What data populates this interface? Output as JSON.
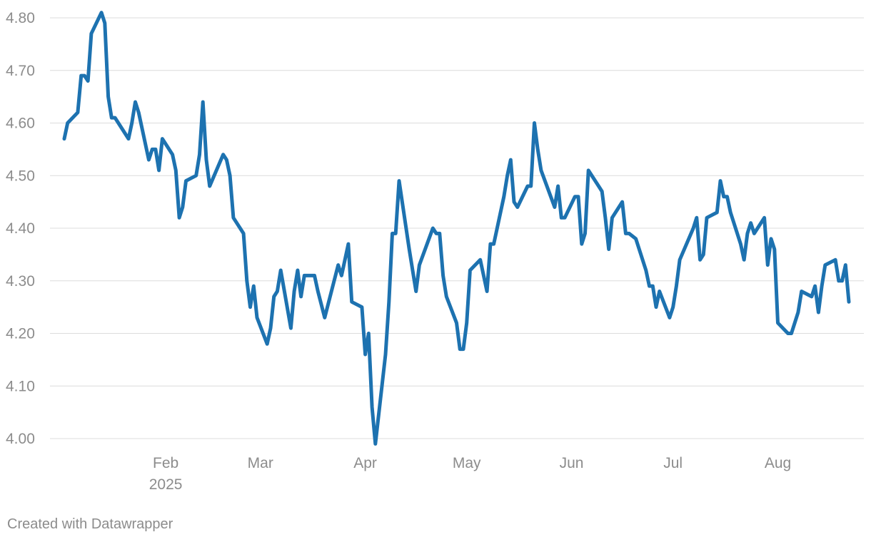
{
  "chart_data": {
    "type": "line",
    "title": "",
    "xlabel": "",
    "ylabel": "",
    "ylim": [
      4.0,
      4.8
    ],
    "y_ticks": [
      4.0,
      4.1,
      4.2,
      4.3,
      4.4,
      4.5,
      4.6,
      4.7,
      4.8
    ],
    "y_tick_labels": [
      "4.00",
      "4.10",
      "4.20",
      "4.30",
      "4.40",
      "4.50",
      "4.60",
      "4.70",
      "4.80"
    ],
    "x_ticks": [
      {
        "label": "Feb",
        "sublabel": "2025",
        "date": "2025-02-01"
      },
      {
        "label": "Mar",
        "date": "2025-03-01"
      },
      {
        "label": "Apr",
        "date": "2025-04-01"
      },
      {
        "label": "May",
        "date": "2025-05-01"
      },
      {
        "label": "Jun",
        "date": "2025-06-01"
      },
      {
        "label": "Jul",
        "date": "2025-07-01"
      },
      {
        "label": "Aug",
        "date": "2025-08-01"
      }
    ],
    "grid": true,
    "line_color": "#1d72b0",
    "series": [
      {
        "points": [
          [
            "2025-01-02",
            4.57
          ],
          [
            "2025-01-03",
            4.6
          ],
          [
            "2025-01-06",
            4.62
          ],
          [
            "2025-01-07",
            4.69
          ],
          [
            "2025-01-08",
            4.69
          ],
          [
            "2025-01-09",
            4.68
          ],
          [
            "2025-01-10",
            4.77
          ],
          [
            "2025-01-13",
            4.81
          ],
          [
            "2025-01-14",
            4.79
          ],
          [
            "2025-01-15",
            4.65
          ],
          [
            "2025-01-16",
            4.61
          ],
          [
            "2025-01-17",
            4.61
          ],
          [
            "2025-01-21",
            4.57
          ],
          [
            "2025-01-22",
            4.6
          ],
          [
            "2025-01-23",
            4.64
          ],
          [
            "2025-01-24",
            4.62
          ],
          [
            "2025-01-27",
            4.53
          ],
          [
            "2025-01-28",
            4.55
          ],
          [
            "2025-01-29",
            4.55
          ],
          [
            "2025-01-30",
            4.51
          ],
          [
            "2025-01-31",
            4.57
          ],
          [
            "2025-02-03",
            4.54
          ],
          [
            "2025-02-04",
            4.51
          ],
          [
            "2025-02-05",
            4.42
          ],
          [
            "2025-02-06",
            4.44
          ],
          [
            "2025-02-07",
            4.49
          ],
          [
            "2025-02-10",
            4.5
          ],
          [
            "2025-02-11",
            4.54
          ],
          [
            "2025-02-12",
            4.64
          ],
          [
            "2025-02-13",
            4.53
          ],
          [
            "2025-02-14",
            4.48
          ],
          [
            "2025-02-18",
            4.54
          ],
          [
            "2025-02-19",
            4.53
          ],
          [
            "2025-02-20",
            4.5
          ],
          [
            "2025-02-21",
            4.42
          ],
          [
            "2025-02-24",
            4.39
          ],
          [
            "2025-02-25",
            4.3
          ],
          [
            "2025-02-26",
            4.25
          ],
          [
            "2025-02-27",
            4.29
          ],
          [
            "2025-02-28",
            4.23
          ],
          [
            "2025-03-03",
            4.18
          ],
          [
            "2025-03-04",
            4.21
          ],
          [
            "2025-03-05",
            4.27
          ],
          [
            "2025-03-06",
            4.28
          ],
          [
            "2025-03-07",
            4.32
          ],
          [
            "2025-03-10",
            4.21
          ],
          [
            "2025-03-11",
            4.28
          ],
          [
            "2025-03-12",
            4.32
          ],
          [
            "2025-03-13",
            4.27
          ],
          [
            "2025-03-14",
            4.31
          ],
          [
            "2025-03-17",
            4.31
          ],
          [
            "2025-03-18",
            4.28
          ],
          [
            "2025-03-20",
            4.23
          ],
          [
            "2025-03-24",
            4.33
          ],
          [
            "2025-03-25",
            4.31
          ],
          [
            "2025-03-27",
            4.37
          ],
          [
            "2025-03-28",
            4.26
          ],
          [
            "2025-03-31",
            4.25
          ],
          [
            "2025-04-01",
            4.16
          ],
          [
            "2025-04-02",
            4.2
          ],
          [
            "2025-04-03",
            4.06
          ],
          [
            "2025-04-04",
            3.99
          ],
          [
            "2025-04-07",
            4.16
          ],
          [
            "2025-04-08",
            4.26
          ],
          [
            "2025-04-09",
            4.39
          ],
          [
            "2025-04-10",
            4.39
          ],
          [
            "2025-04-11",
            4.49
          ],
          [
            "2025-04-14",
            4.36
          ],
          [
            "2025-04-16",
            4.28
          ],
          [
            "2025-04-17",
            4.33
          ],
          [
            "2025-04-21",
            4.4
          ],
          [
            "2025-04-22",
            4.39
          ],
          [
            "2025-04-23",
            4.39
          ],
          [
            "2025-04-24",
            4.31
          ],
          [
            "2025-04-25",
            4.27
          ],
          [
            "2025-04-28",
            4.22
          ],
          [
            "2025-04-29",
            4.17
          ],
          [
            "2025-04-30",
            4.17
          ],
          [
            "2025-05-01",
            4.22
          ],
          [
            "2025-05-02",
            4.32
          ],
          [
            "2025-05-05",
            4.34
          ],
          [
            "2025-05-07",
            4.28
          ],
          [
            "2025-05-08",
            4.37
          ],
          [
            "2025-05-09",
            4.37
          ],
          [
            "2025-05-12",
            4.46
          ],
          [
            "2025-05-13",
            4.5
          ],
          [
            "2025-05-14",
            4.53
          ],
          [
            "2025-05-15",
            4.45
          ],
          [
            "2025-05-16",
            4.44
          ],
          [
            "2025-05-19",
            4.48
          ],
          [
            "2025-05-20",
            4.48
          ],
          [
            "2025-05-21",
            4.6
          ],
          [
            "2025-05-22",
            4.55
          ],
          [
            "2025-05-23",
            4.51
          ],
          [
            "2025-05-27",
            4.44
          ],
          [
            "2025-05-28",
            4.48
          ],
          [
            "2025-05-29",
            4.42
          ],
          [
            "2025-05-30",
            4.42
          ],
          [
            "2025-06-02",
            4.46
          ],
          [
            "2025-06-03",
            4.46
          ],
          [
            "2025-06-04",
            4.37
          ],
          [
            "2025-06-05",
            4.39
          ],
          [
            "2025-06-06",
            4.51
          ],
          [
            "2025-06-09",
            4.48
          ],
          [
            "2025-06-10",
            4.47
          ],
          [
            "2025-06-11",
            4.42
          ],
          [
            "2025-06-12",
            4.36
          ],
          [
            "2025-06-13",
            4.42
          ],
          [
            "2025-06-16",
            4.45
          ],
          [
            "2025-06-17",
            4.39
          ],
          [
            "2025-06-18",
            4.39
          ],
          [
            "2025-06-20",
            4.38
          ],
          [
            "2025-06-23",
            4.32
          ],
          [
            "2025-06-24",
            4.29
          ],
          [
            "2025-06-25",
            4.29
          ],
          [
            "2025-06-26",
            4.25
          ],
          [
            "2025-06-27",
            4.28
          ],
          [
            "2025-06-30",
            4.23
          ],
          [
            "2025-07-01",
            4.25
          ],
          [
            "2025-07-02",
            4.29
          ],
          [
            "2025-07-03",
            4.34
          ],
          [
            "2025-07-07",
            4.4
          ],
          [
            "2025-07-08",
            4.42
          ],
          [
            "2025-07-09",
            4.34
          ],
          [
            "2025-07-10",
            4.35
          ],
          [
            "2025-07-11",
            4.42
          ],
          [
            "2025-07-14",
            4.43
          ],
          [
            "2025-07-15",
            4.49
          ],
          [
            "2025-07-16",
            4.46
          ],
          [
            "2025-07-17",
            4.46
          ],
          [
            "2025-07-18",
            4.43
          ],
          [
            "2025-07-21",
            4.37
          ],
          [
            "2025-07-22",
            4.34
          ],
          [
            "2025-07-23",
            4.39
          ],
          [
            "2025-07-24",
            4.41
          ],
          [
            "2025-07-25",
            4.39
          ],
          [
            "2025-07-28",
            4.42
          ],
          [
            "2025-07-29",
            4.33
          ],
          [
            "2025-07-30",
            4.38
          ],
          [
            "2025-07-31",
            4.36
          ],
          [
            "2025-08-01",
            4.22
          ],
          [
            "2025-08-04",
            4.2
          ],
          [
            "2025-08-05",
            4.2
          ],
          [
            "2025-08-07",
            4.24
          ],
          [
            "2025-08-08",
            4.28
          ],
          [
            "2025-08-11",
            4.27
          ],
          [
            "2025-08-12",
            4.29
          ],
          [
            "2025-08-13",
            4.24
          ],
          [
            "2025-08-14",
            4.29
          ],
          [
            "2025-08-15",
            4.33
          ],
          [
            "2025-08-18",
            4.34
          ],
          [
            "2025-08-19",
            4.3
          ],
          [
            "2025-08-20",
            4.3
          ],
          [
            "2025-08-21",
            4.33
          ],
          [
            "2025-08-22",
            4.26
          ]
        ]
      }
    ]
  },
  "footer": {
    "credit": "Created with Datawrapper"
  }
}
